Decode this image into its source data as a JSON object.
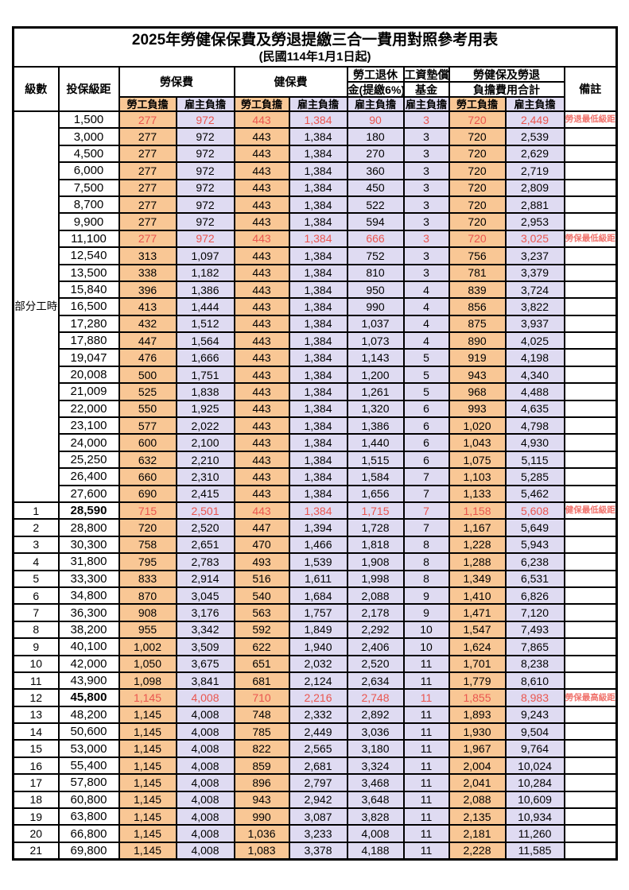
{
  "title": "2025年勞健保保費及勞退提繳三合一費用對照參考用表",
  "subtitle": "(民國114年1月1日起)",
  "header": {
    "level": "級數",
    "bracket": "投保級距",
    "labor_ins": "勞保費",
    "health_ins": "健保費",
    "pension_line1": "勞工退休",
    "pension_line2": "金(提繳6%)",
    "wage_fund_line1": "工資墊償",
    "wage_fund_line2": "基金",
    "total_line1": "勞健保及勞退",
    "total_line2": "負擔費用合計",
    "remark": "備註",
    "employee": "勞工負擔",
    "employer": "雇主負擔"
  },
  "part_time_label": "部分工時",
  "part_time_rowspan": 23,
  "colors": {
    "employee_bg": "#F9C795",
    "employer_bg": "#DFDBF2",
    "highlight_red": "#EA564F",
    "remark_red": "#F0736C",
    "border": "#000000"
  },
  "rows": [
    {
      "lv": "",
      "bracket": "1,500",
      "cells": [
        "277",
        "972",
        "443",
        "1,384",
        "90",
        "3",
        "720",
        "2,449"
      ],
      "remark": "勞退最低級距",
      "red": true
    },
    {
      "lv": "",
      "bracket": "3,000",
      "cells": [
        "277",
        "972",
        "443",
        "1,384",
        "180",
        "3",
        "720",
        "2,539"
      ]
    },
    {
      "lv": "",
      "bracket": "4,500",
      "cells": [
        "277",
        "972",
        "443",
        "1,384",
        "270",
        "3",
        "720",
        "2,629"
      ]
    },
    {
      "lv": "",
      "bracket": "6,000",
      "cells": [
        "277",
        "972",
        "443",
        "1,384",
        "360",
        "3",
        "720",
        "2,719"
      ]
    },
    {
      "lv": "",
      "bracket": "7,500",
      "cells": [
        "277",
        "972",
        "443",
        "1,384",
        "450",
        "3",
        "720",
        "2,809"
      ]
    },
    {
      "lv": "",
      "bracket": "8,700",
      "cells": [
        "277",
        "972",
        "443",
        "1,384",
        "522",
        "3",
        "720",
        "2,881"
      ]
    },
    {
      "lv": "",
      "bracket": "9,900",
      "cells": [
        "277",
        "972",
        "443",
        "1,384",
        "594",
        "3",
        "720",
        "2,953"
      ]
    },
    {
      "lv": "",
      "bracket": "11,100",
      "cells": [
        "277",
        "972",
        "443",
        "1,384",
        "666",
        "3",
        "720",
        "3,025"
      ],
      "remark": "勞保最低級距",
      "red": true
    },
    {
      "lv": "",
      "bracket": "12,540",
      "cells": [
        "313",
        "1,097",
        "443",
        "1,384",
        "752",
        "3",
        "756",
        "3,237"
      ]
    },
    {
      "lv": "",
      "bracket": "13,500",
      "cells": [
        "338",
        "1,182",
        "443",
        "1,384",
        "810",
        "3",
        "781",
        "3,379"
      ]
    },
    {
      "lv": "",
      "bracket": "15,840",
      "cells": [
        "396",
        "1,386",
        "443",
        "1,384",
        "950",
        "4",
        "839",
        "3,724"
      ]
    },
    {
      "lv": "",
      "bracket": "16,500",
      "cells": [
        "413",
        "1,444",
        "443",
        "1,384",
        "990",
        "4",
        "856",
        "3,822"
      ]
    },
    {
      "lv": "",
      "bracket": "17,280",
      "cells": [
        "432",
        "1,512",
        "443",
        "1,384",
        "1,037",
        "4",
        "875",
        "3,937"
      ]
    },
    {
      "lv": "",
      "bracket": "17,880",
      "cells": [
        "447",
        "1,564",
        "443",
        "1,384",
        "1,073",
        "4",
        "890",
        "4,025"
      ]
    },
    {
      "lv": "",
      "bracket": "19,047",
      "cells": [
        "476",
        "1,666",
        "443",
        "1,384",
        "1,143",
        "5",
        "919",
        "4,198"
      ]
    },
    {
      "lv": "",
      "bracket": "20,008",
      "cells": [
        "500",
        "1,751",
        "443",
        "1,384",
        "1,200",
        "5",
        "943",
        "4,340"
      ]
    },
    {
      "lv": "",
      "bracket": "21,009",
      "cells": [
        "525",
        "1,838",
        "443",
        "1,384",
        "1,261",
        "5",
        "968",
        "4,488"
      ]
    },
    {
      "lv": "",
      "bracket": "22,000",
      "cells": [
        "550",
        "1,925",
        "443",
        "1,384",
        "1,320",
        "6",
        "993",
        "4,635"
      ]
    },
    {
      "lv": "",
      "bracket": "23,100",
      "cells": [
        "577",
        "2,022",
        "443",
        "1,384",
        "1,386",
        "6",
        "1,020",
        "4,798"
      ]
    },
    {
      "lv": "",
      "bracket": "24,000",
      "cells": [
        "600",
        "2,100",
        "443",
        "1,384",
        "1,440",
        "6",
        "1,043",
        "4,930"
      ]
    },
    {
      "lv": "",
      "bracket": "25,250",
      "cells": [
        "632",
        "2,210",
        "443",
        "1,384",
        "1,515",
        "6",
        "1,075",
        "5,115"
      ]
    },
    {
      "lv": "",
      "bracket": "26,400",
      "cells": [
        "660",
        "2,310",
        "443",
        "1,384",
        "1,584",
        "7",
        "1,103",
        "5,285"
      ]
    },
    {
      "lv": "",
      "bracket": "27,600",
      "cells": [
        "690",
        "2,415",
        "443",
        "1,384",
        "1,656",
        "7",
        "1,133",
        "5,462"
      ]
    },
    {
      "lv": "1",
      "bracket": "28,590",
      "cells": [
        "715",
        "2,501",
        "443",
        "1,384",
        "1,715",
        "7",
        "1,158",
        "5,608"
      ],
      "remark": "健保最低級距",
      "red": true,
      "bold_bracket": true
    },
    {
      "lv": "2",
      "bracket": "28,800",
      "cells": [
        "720",
        "2,520",
        "447",
        "1,394",
        "1,728",
        "7",
        "1,167",
        "5,649"
      ]
    },
    {
      "lv": "3",
      "bracket": "30,300",
      "cells": [
        "758",
        "2,651",
        "470",
        "1,466",
        "1,818",
        "8",
        "1,228",
        "5,943"
      ]
    },
    {
      "lv": "4",
      "bracket": "31,800",
      "cells": [
        "795",
        "2,783",
        "493",
        "1,539",
        "1,908",
        "8",
        "1,288",
        "6,238"
      ]
    },
    {
      "lv": "5",
      "bracket": "33,300",
      "cells": [
        "833",
        "2,914",
        "516",
        "1,611",
        "1,998",
        "8",
        "1,349",
        "6,531"
      ]
    },
    {
      "lv": "6",
      "bracket": "34,800",
      "cells": [
        "870",
        "3,045",
        "540",
        "1,684",
        "2,088",
        "9",
        "1,410",
        "6,826"
      ]
    },
    {
      "lv": "7",
      "bracket": "36,300",
      "cells": [
        "908",
        "3,176",
        "563",
        "1,757",
        "2,178",
        "9",
        "1,471",
        "7,120"
      ]
    },
    {
      "lv": "8",
      "bracket": "38,200",
      "cells": [
        "955",
        "3,342",
        "592",
        "1,849",
        "2,292",
        "10",
        "1,547",
        "7,493"
      ]
    },
    {
      "lv": "9",
      "bracket": "40,100",
      "cells": [
        "1,002",
        "3,509",
        "622",
        "1,940",
        "2,406",
        "10",
        "1,624",
        "7,865"
      ]
    },
    {
      "lv": "10",
      "bracket": "42,000",
      "cells": [
        "1,050",
        "3,675",
        "651",
        "2,032",
        "2,520",
        "11",
        "1,701",
        "8,238"
      ]
    },
    {
      "lv": "11",
      "bracket": "43,900",
      "cells": [
        "1,098",
        "3,841",
        "681",
        "2,124",
        "2,634",
        "11",
        "1,779",
        "8,610"
      ]
    },
    {
      "lv": "12",
      "bracket": "45,800",
      "cells": [
        "1,145",
        "4,008",
        "710",
        "2,216",
        "2,748",
        "11",
        "1,855",
        "8,983"
      ],
      "remark": "勞保最高級距",
      "red": true,
      "bold_bracket": true
    },
    {
      "lv": "13",
      "bracket": "48,200",
      "cells": [
        "1,145",
        "4,008",
        "748",
        "2,332",
        "2,892",
        "11",
        "1,893",
        "9,243"
      ]
    },
    {
      "lv": "14",
      "bracket": "50,600",
      "cells": [
        "1,145",
        "4,008",
        "785",
        "2,449",
        "3,036",
        "11",
        "1,930",
        "9,504"
      ]
    },
    {
      "lv": "15",
      "bracket": "53,000",
      "cells": [
        "1,145",
        "4,008",
        "822",
        "2,565",
        "3,180",
        "11",
        "1,967",
        "9,764"
      ]
    },
    {
      "lv": "16",
      "bracket": "55,400",
      "cells": [
        "1,145",
        "4,008",
        "859",
        "2,681",
        "3,324",
        "11",
        "2,004",
        "10,024"
      ]
    },
    {
      "lv": "17",
      "bracket": "57,800",
      "cells": [
        "1,145",
        "4,008",
        "896",
        "2,797",
        "3,468",
        "11",
        "2,041",
        "10,284"
      ]
    },
    {
      "lv": "18",
      "bracket": "60,800",
      "cells": [
        "1,145",
        "4,008",
        "943",
        "2,942",
        "3,648",
        "11",
        "2,088",
        "10,609"
      ]
    },
    {
      "lv": "19",
      "bracket": "63,800",
      "cells": [
        "1,145",
        "4,008",
        "990",
        "3,087",
        "3,828",
        "11",
        "2,135",
        "10,934"
      ]
    },
    {
      "lv": "20",
      "bracket": "66,800",
      "cells": [
        "1,145",
        "4,008",
        "1,036",
        "3,233",
        "4,008",
        "11",
        "2,181",
        "11,260"
      ]
    },
    {
      "lv": "21",
      "bracket": "69,800",
      "cells": [
        "1,145",
        "4,008",
        "1,083",
        "3,378",
        "4,188",
        "11",
        "2,228",
        "11,585"
      ]
    }
  ]
}
